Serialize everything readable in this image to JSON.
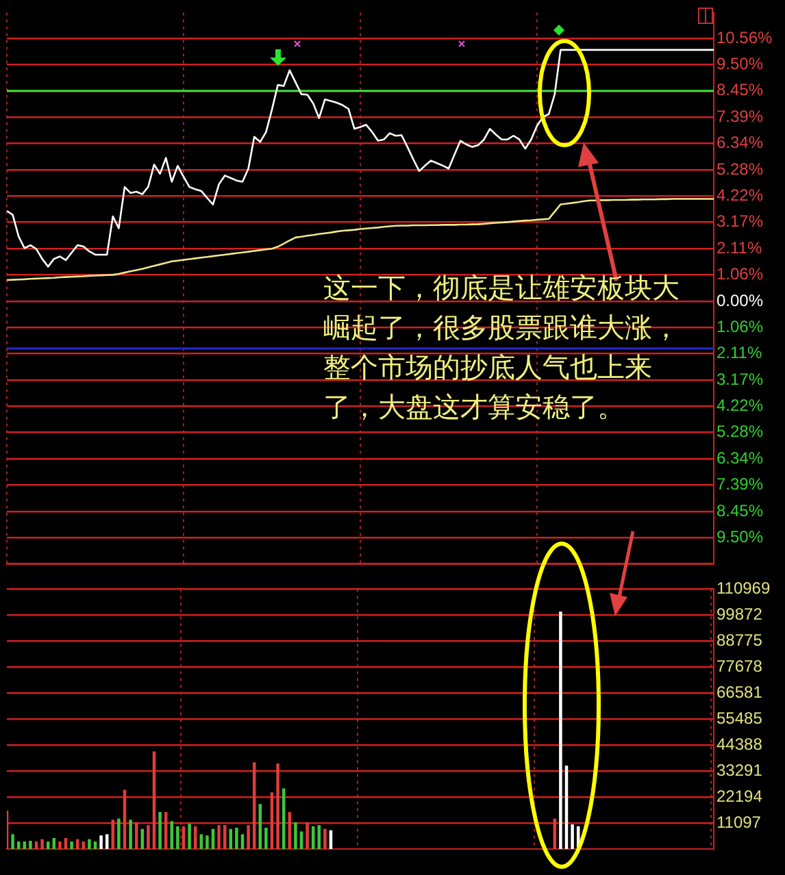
{
  "chart_data": [
    {
      "type": "line",
      "categories": [
        null,
        null,
        null,
        null,
        null,
        null,
        null,
        null,
        null,
        null,
        null,
        null,
        null,
        null,
        null,
        null,
        null,
        null,
        null,
        null,
        null,
        null,
        null,
        null,
        null,
        null,
        null,
        null,
        null,
        null,
        null,
        null,
        null,
        null,
        null,
        null,
        null,
        null,
        null,
        null,
        null,
        null,
        null,
        null,
        null,
        null,
        null,
        null,
        null,
        null,
        null,
        null,
        null,
        null,
        null,
        null,
        null,
        null,
        null,
        null,
        null,
        null,
        null,
        null,
        null,
        null,
        null,
        null,
        null,
        null,
        null,
        null,
        null,
        null,
        null,
        null,
        null,
        null,
        null,
        null,
        null,
        null,
        null,
        null,
        null,
        null,
        null,
        null,
        null,
        null,
        null,
        null,
        null,
        null,
        null,
        null,
        null,
        null,
        null,
        null,
        null,
        null,
        null,
        null,
        null,
        null,
        null,
        null,
        null,
        null,
        null,
        null,
        null,
        null,
        null,
        null,
        null,
        null,
        null,
        null,
        null
      ],
      "ylim": [
        -10.56,
        11.6
      ],
      "yticks": [
        {
          "value": 10.56,
          "label": "10.56%"
        },
        {
          "value": 9.5,
          "label": "9.50%"
        },
        {
          "value": 8.45,
          "label": "8.45%"
        },
        {
          "value": 7.39,
          "label": "7.39%"
        },
        {
          "value": 6.34,
          "label": "6.34%"
        },
        {
          "value": 5.28,
          "label": "5.28%"
        },
        {
          "value": 4.22,
          "label": "4.22%"
        },
        {
          "value": 3.17,
          "label": "3.17%"
        },
        {
          "value": 2.11,
          "label": "2.11%"
        },
        {
          "value": 1.06,
          "label": "1.06%"
        },
        {
          "value": 0,
          "label": "0.00%"
        },
        {
          "value": -1.06,
          "label": "1.06%"
        },
        {
          "value": -2.11,
          "label": "2.11%"
        },
        {
          "value": -3.17,
          "label": "3.17%"
        },
        {
          "value": -4.22,
          "label": "4.22%"
        },
        {
          "value": -5.28,
          "label": "5.28%"
        },
        {
          "value": -6.34,
          "label": "6.34%"
        },
        {
          "value": -7.39,
          "label": "7.39%"
        },
        {
          "value": -8.45,
          "label": "8.45%"
        },
        {
          "value": -9.5,
          "label": "9.50%"
        },
        {
          "value": -10.56,
          "label": null
        }
      ],
      "tick_labels": "y",
      "grid": true,
      "marker": "none",
      "ref_lines": [
        {
          "axis": "y",
          "value": 8.45,
          "label": null,
          "color": "#3cdc3c"
        },
        {
          "axis": "y",
          "value": -1.9,
          "label": null,
          "color": "#2828c8"
        }
      ],
      "annotations": [
        "这一下，彻底是让雄安板块大崛起了，很多股票跟谁大涨，整个市场的抄底人气也上来了，大盘这才算安稳了。"
      ],
      "series": [
        {
          "color": "#ffffff",
          "values": [
            3.63,
            3.47,
            2.6,
            2.13,
            2.25,
            2.1,
            1.7,
            1.39,
            1.7,
            1.8,
            1.65,
            1.95,
            2.25,
            2.2,
            2.0,
            1.87,
            1.87,
            1.87,
            3.41,
            2.93,
            4.59,
            4.35,
            4.4,
            4.3,
            4.6,
            5.49,
            5.12,
            5.76,
            4.8,
            5.44,
            5.0,
            4.59,
            4.5,
            4.43,
            4.15,
            3.89,
            4.7,
            5.05,
            4.95,
            4.85,
            4.8,
            5.33,
            6.61,
            6.4,
            6.8,
            7.7,
            8.69,
            8.65,
            9.28,
            8.8,
            8.32,
            8.3,
            7.95,
            7.36,
            8.11,
            8.05,
            7.98,
            7.88,
            7.73,
            6.93,
            7.0,
            7.09,
            6.8,
            6.45,
            6.5,
            6.75,
            6.65,
            6.67,
            6.2,
            5.7,
            5.23,
            5.45,
            5.65,
            5.55,
            5.45,
            5.33,
            5.9,
            6.45,
            6.3,
            6.2,
            6.27,
            6.5,
            6.93,
            6.7,
            6.5,
            6.5,
            6.65,
            6.5,
            6.13,
            6.5,
            7.05,
            7.4,
            7.52,
            8.32,
            10.1,
            10.1,
            10.1,
            10.1,
            10.1,
            10.1,
            10.1,
            10.1,
            10.1,
            10.1,
            10.1,
            10.1,
            10.1,
            10.1,
            10.1,
            10.1,
            10.1,
            10.1,
            10.1,
            10.1,
            10.1,
            10.1,
            10.1,
            10.1,
            10.1,
            10.1,
            10.1
          ]
        },
        {
          "color": "#f0e68c",
          "values": [
            0.85,
            0.86,
            0.87,
            0.88,
            0.9,
            0.91,
            0.92,
            0.93,
            0.94,
            0.96,
            0.97,
            0.98,
            0.99,
            1.0,
            1.02,
            1.03,
            1.04,
            1.05,
            1.06,
            1.1,
            1.15,
            1.2,
            1.25,
            1.3,
            1.36,
            1.42,
            1.48,
            1.54,
            1.6,
            1.63,
            1.66,
            1.69,
            1.72,
            1.75,
            1.78,
            1.81,
            1.84,
            1.87,
            1.9,
            1.93,
            1.96,
            1.99,
            2.02,
            2.05,
            2.08,
            2.11,
            2.19,
            2.31,
            2.44,
            2.56,
            2.59,
            2.63,
            2.66,
            2.7,
            2.73,
            2.76,
            2.8,
            2.83,
            2.85,
            2.87,
            2.9,
            2.92,
            2.94,
            2.96,
            2.99,
            3.01,
            3.03,
            3.04,
            3.04,
            3.05,
            3.05,
            3.05,
            3.06,
            3.06,
            3.07,
            3.07,
            3.07,
            3.08,
            3.08,
            3.09,
            3.09,
            3.11,
            3.13,
            3.15,
            3.16,
            3.18,
            3.2,
            3.22,
            3.24,
            3.25,
            3.27,
            3.29,
            3.31,
            3.6,
            3.89,
            3.92,
            3.95,
            3.98,
            4.02,
            4.05,
            4.05,
            4.06,
            4.06,
            4.07,
            4.07,
            4.07,
            4.08,
            4.08,
            4.09,
            4.09,
            4.09,
            4.1,
            4.1,
            4.11,
            4.11,
            4.11,
            4.11,
            4.11,
            4.11,
            4.11,
            4.11
          ]
        }
      ]
    },
    {
      "type": "bar",
      "categories": [
        null,
        null,
        null,
        null,
        null,
        null,
        null,
        null,
        null,
        null,
        null,
        null,
        null,
        null,
        null,
        null,
        null,
        null,
        null,
        null,
        null,
        null,
        null,
        null,
        null,
        null,
        null,
        null,
        null,
        null,
        null,
        null,
        null,
        null,
        null,
        null,
        null,
        null,
        null,
        null,
        null,
        null,
        null,
        null,
        null,
        null,
        null,
        null,
        null,
        null,
        null,
        null,
        null,
        null,
        null,
        null,
        null,
        null,
        null,
        null,
        null,
        null,
        null,
        null,
        null,
        null,
        null,
        null,
        null,
        null,
        null,
        null,
        null,
        null,
        null,
        null,
        null,
        null,
        null,
        null,
        null,
        null,
        null,
        null,
        null,
        null,
        null,
        null,
        null,
        null,
        null,
        null,
        null,
        null,
        null,
        null,
        null,
        null,
        null,
        null,
        null,
        null,
        null,
        null,
        null,
        null,
        null,
        null,
        null,
        null,
        null,
        null,
        null,
        null,
        null,
        null,
        null,
        null,
        null,
        null,
        null
      ],
      "ylim": [
        0,
        110969
      ],
      "yticks": [
        11097,
        22194,
        33291,
        44388,
        55485,
        66581,
        77678,
        88775,
        99872,
        110969
      ],
      "tick_labels": "y",
      "grid": true,
      "series": [
        {
          "values": [
            16200,
            6100,
            3000,
            3000,
            3300,
            3000,
            4000,
            3000,
            4500,
            3000,
            4500,
            3000,
            4000,
            3000,
            4000,
            3000,
            5600,
            6100,
            12300,
            12800,
            25100,
            12300,
            11200,
            8400,
            10000,
            41500,
            15600,
            15600,
            11700,
            9500,
            9500,
            10600,
            9500,
            6100,
            5600,
            8400,
            10000,
            10000,
            8400,
            8900,
            6100,
            10000,
            36800,
            19000,
            8900,
            24000,
            36300,
            25700,
            15600,
            11200,
            7300,
            11200,
            9500,
            10000,
            8400,
            7800,
            null,
            null,
            null,
            null,
            null,
            null,
            null,
            null,
            null,
            null,
            null,
            null,
            null,
            null,
            null,
            null,
            null,
            null,
            null,
            null,
            null,
            null,
            null,
            null,
            null,
            null,
            null,
            null,
            null,
            null,
            null,
            null,
            null,
            null,
            null,
            null,
            null,
            12800,
            101200,
            35400,
            10300,
            9500,
            null,
            null,
            null,
            null,
            null,
            null,
            null,
            null,
            null,
            null,
            null,
            null,
            null,
            null,
            null,
            null,
            null,
            null,
            null,
            null,
            null,
            null,
            null
          ],
          "colors": [
            "#e03c3c",
            "#3cc83c",
            "#3cc83c",
            "#3cc83c",
            "#3cc83c",
            "#e03c3c",
            "#e03c3c",
            "#3cc83c",
            "#3cc83c",
            "#e03c3c",
            "#e03c3c",
            "#3cc83c",
            "#e03c3c",
            "#e03c3c",
            "#3cc83c",
            "#3cc83c",
            "#ffffff",
            "#ffffff",
            "#e03c3c",
            "#3cc83c",
            "#e03c3c",
            "#3cc83c",
            "#e03c3c",
            "#3cc83c",
            "#e03c3c",
            "#e03c3c",
            "#3cc83c",
            "#e03c3c",
            "#3cc83c",
            "#3cc83c",
            "#e03c3c",
            "#3cc83c",
            "#e03c3c",
            "#3cc83c",
            "#3cc83c",
            "#3cc83c",
            "#e03c3c",
            "#e03c3c",
            "#3cc83c",
            "#3cc83c",
            "#3cc83c",
            "#e03c3c",
            "#e03c3c",
            "#3cc83c",
            "#3cc83c",
            "#e03c3c",
            "#e03c3c",
            "#3cc83c",
            "#e03c3c",
            "#3cc83c",
            "#3cc83c",
            "#e03c3c",
            "#3cc83c",
            "#3cc83c",
            "#e03c3c",
            "#ffffff",
            "#e03c3c",
            "#e03c3c",
            "#e03c3c",
            "#e03c3c",
            "#e03c3c",
            "#e03c3c",
            "#e03c3c",
            "#e03c3c",
            "#e03c3c",
            "#e03c3c",
            "#e03c3c",
            "#e03c3c",
            "#e03c3c",
            "#e03c3c",
            "#e03c3c",
            "#e03c3c",
            "#e03c3c",
            "#e03c3c",
            "#e03c3c",
            "#e03c3c",
            "#e03c3c",
            "#e03c3c",
            "#e03c3c",
            "#e03c3c",
            "#e03c3c",
            "#e03c3c",
            "#e03c3c",
            "#e03c3c",
            "#e03c3c",
            "#e03c3c",
            "#e03c3c",
            "#e03c3c",
            "#e03c3c",
            "#e03c3c",
            "#e03c3c",
            "#e03c3c",
            "#e03c3c",
            "#e03c3c",
            "#ffffff",
            "#ffffff",
            "#ffffff",
            "#ffffff",
            "#e03c3c",
            "#e03c3c",
            "#e03c3c",
            "#e03c3c",
            "#e03c3c",
            "#e03c3c",
            "#e03c3c",
            "#e03c3c",
            "#e03c3c",
            "#e03c3c",
            "#e03c3c",
            "#e03c3c",
            "#e03c3c",
            "#e03c3c",
            "#e03c3c",
            "#e03c3c",
            "#e03c3c",
            "#e03c3c",
            "#e03c3c",
            "#e03c3c",
            "#e03c3c",
            "#e03c3c",
            "#e03c3c"
          ]
        }
      ]
    }
  ]
}
